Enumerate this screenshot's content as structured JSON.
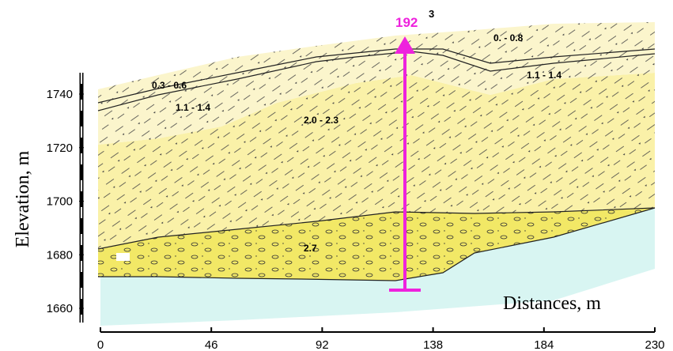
{
  "x_axis": {
    "label": "Distances, m",
    "ticks": [
      0,
      46,
      92,
      138,
      184,
      230
    ]
  },
  "y_axis": {
    "label": "Elevation, m",
    "ticks": [
      1660,
      1680,
      1700,
      1720,
      1740
    ]
  },
  "borehole": {
    "number": "192",
    "superscript": "3"
  },
  "layers": [
    {
      "label": "0. - 0.8"
    },
    {
      "label": "0.3 - 0.6"
    },
    {
      "label": "1.1 - 1.4"
    },
    {
      "label": "1.1 - 1.4"
    },
    {
      "label": "2.0 - 2.3"
    },
    {
      "label": "2.7"
    }
  ]
}
